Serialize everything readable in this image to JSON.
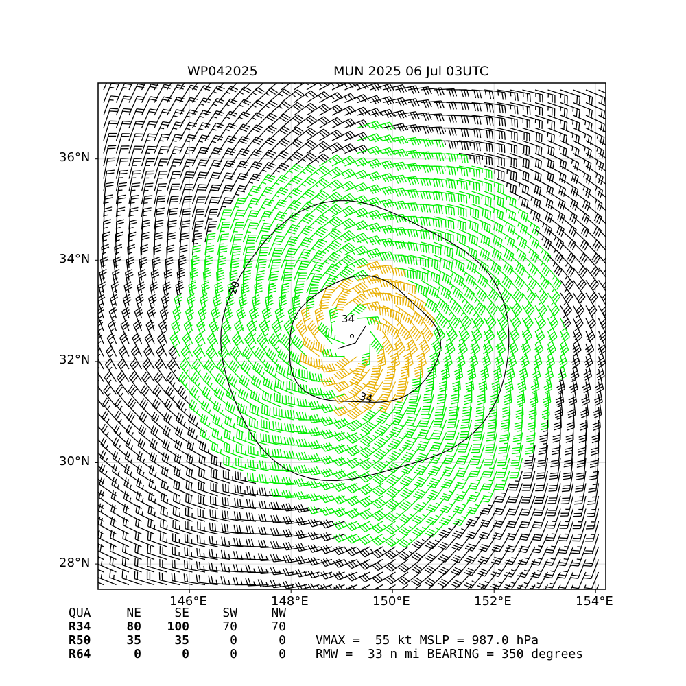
{
  "header": {
    "storm_id": "WP042025",
    "storm_time": "MUN 2025 06 Jul 03UTC"
  },
  "chart_data": {
    "type": "wind-barb-map",
    "lon_range": [
      144.2,
      154.2
    ],
    "lat_range": [
      27.5,
      37.5
    ],
    "x_ticks": [
      "146°E",
      "148°E",
      "150°E",
      "152°E",
      "154°E"
    ],
    "y_ticks": [
      "36°N",
      "34°N",
      "32°N",
      "30°N",
      "28°N"
    ],
    "grid": true,
    "center": {
      "lon": 149.2,
      "lat": 32.5
    },
    "contour_labels": [
      "20",
      "34",
      "34"
    ],
    "barb_colors": {
      "below_34": "#000000",
      "34_to_50": "#00ee00",
      "50_plus": "#e8b000"
    }
  },
  "quadrant_table": {
    "headers": [
      "QUA",
      "NE",
      "SE",
      "SW",
      "NW"
    ],
    "rows": [
      {
        "label": "R34",
        "values": [
          "80",
          "100",
          "70",
          "70"
        ]
      },
      {
        "label": "R50",
        "values": [
          "35",
          "35",
          "0",
          "0"
        ]
      },
      {
        "label": "R64",
        "values": [
          "0",
          "0",
          "0",
          "0"
        ]
      }
    ]
  },
  "summary": {
    "line1": "VMAX =  55 kt MSLP = 987.0 hPa",
    "line2": "RMW =  33 n mi BEARING = 350 degrees"
  }
}
